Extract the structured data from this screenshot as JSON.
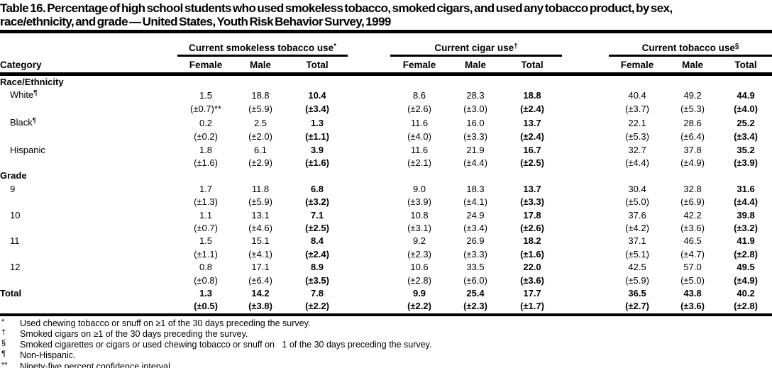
{
  "title": {
    "line1": "Table 16. Percentage of high school students who used smokeless tobacco, smoked cigars, and used any tobacco product, by sex,",
    "line2": "race/ethnicity, and grade — United States, Youth Risk Behavior Survey, 1999"
  },
  "table": {
    "category_header": "Category",
    "groups": [
      {
        "label": "Current smokeless tobacco use",
        "marker": "*",
        "columns": [
          "Female",
          "Male",
          "Total"
        ]
      },
      {
        "label": "Current cigar use",
        "marker": "†",
        "columns": [
          "Female",
          "Male",
          "Total"
        ]
      },
      {
        "label": "Current tobacco use",
        "marker": "§",
        "columns": [
          "Female",
          "Male",
          "Total"
        ]
      }
    ],
    "sections": [
      {
        "label": "Race/Ethnicity",
        "rows": [
          {
            "label": "White",
            "marker": "¶",
            "values": [
              "1.5",
              "18.8",
              "10.4",
              "8.6",
              "28.3",
              "18.8",
              "40.4",
              "49.2",
              "44.9"
            ],
            "ci": [
              "(±0.7)**",
              "(±5.9)",
              "(±3.4)",
              "(±2.6)",
              "(±3.0)",
              "(±2.4)",
              "(±3.7)",
              "(±5.3)",
              "(±4.0)"
            ]
          },
          {
            "label": "Black",
            "marker": "¶",
            "values": [
              "0.2",
              "2.5",
              "1.3",
              "11.6",
              "16.0",
              "13.7",
              "22.1",
              "28.6",
              "25.2"
            ],
            "ci": [
              "(±0.2)",
              "(±2.0)",
              "(±1.1)",
              "(±4.0)",
              "(±3.3)",
              "(±2.4)",
              "(±5.3)",
              "(±6.4)",
              "(±3.4)"
            ]
          },
          {
            "label": "Hispanic",
            "marker": "",
            "values": [
              "1.8",
              "6.1",
              "3.9",
              "11.6",
              "21.9",
              "16.7",
              "32.7",
              "37.8",
              "35.2"
            ],
            "ci": [
              "(±1.6)",
              "(±2.9)",
              "(±1.6)",
              "(±2.1)",
              "(±4.4)",
              "(±2.5)",
              "(±4.4)",
              "(±4.9)",
              "(±3.9)"
            ]
          }
        ]
      },
      {
        "label": "Grade",
        "rows": [
          {
            "label": "9",
            "marker": "",
            "values": [
              "1.7",
              "11.8",
              "6.8",
              "9.0",
              "18.3",
              "13.7",
              "30.4",
              "32.8",
              "31.6"
            ],
            "ci": [
              "(±1.3)",
              "(±5.9)",
              "(±3.2)",
              "(±3.9)",
              "(±4.1)",
              "(±3.3)",
              "(±5.0)",
              "(±6.9)",
              "(±4.4)"
            ]
          },
          {
            "label": "10",
            "marker": "",
            "values": [
              "1.1",
              "13.1",
              "7.1",
              "10.8",
              "24.9",
              "17.8",
              "37.6",
              "42.2",
              "39.8"
            ],
            "ci": [
              "(±0.7)",
              "(±4.6)",
              "(±2.5)",
              "(±3.1)",
              "(±3.4)",
              "(±2.6)",
              "(±4.2)",
              "(±3.6)",
              "(±3.2)"
            ]
          },
          {
            "label": "11",
            "marker": "",
            "values": [
              "1.5",
              "15.1",
              "8.4",
              "9.2",
              "26.9",
              "18.2",
              "37.1",
              "46.5",
              "41.9"
            ],
            "ci": [
              "(±1.1)",
              "(±4.1)",
              "(±2.4)",
              "(±2.3)",
              "(±3.3)",
              "(±1.6)",
              "(±5.1)",
              "(±4.7)",
              "(±2.8)"
            ]
          },
          {
            "label": "12",
            "marker": "",
            "values": [
              "0.8",
              "17.1",
              "8.9",
              "10.6",
              "33.5",
              "22.0",
              "42.5",
              "57.0",
              "49.5"
            ],
            "ci": [
              "(±0.8)",
              "(±6.4)",
              "(±3.5)",
              "(±2.8)",
              "(±6.0)",
              "(±3.6)",
              "(±5.9)",
              "(±5.0)",
              "(±4.9)"
            ]
          }
        ]
      }
    ],
    "total_row": {
      "label": "Total",
      "marker": "",
      "values": [
        "1.3",
        "14.2",
        "7.8",
        "9.9",
        "25.4",
        "17.7",
        "36.5",
        "43.8",
        "40.2"
      ],
      "ci": [
        "(±0.5)",
        "(±3.8)",
        "(±2.2)",
        "(±2.2)",
        "(±2.3)",
        "(±1.7)",
        "(±2.7)",
        "(±3.6)",
        "(±2.8)"
      ]
    }
  },
  "footnotes": [
    {
      "marker": "*",
      "text": "Used chewing tobacco or snuff on ≥1 of the 30 days preceding the survey."
    },
    {
      "marker": "†",
      "text": "Smoked cigars on ≥1 of the 30 days preceding the survey."
    },
    {
      "marker": "§",
      "text": "Smoked cigarettes or cigars or used chewing tobacco or snuff on   1 of the 30 days preceding the survey."
    },
    {
      "marker": "¶",
      "text": "Non-Hispanic."
    },
    {
      "marker": "**",
      "text": "Ninety-five percent confidence interval."
    }
  ]
}
